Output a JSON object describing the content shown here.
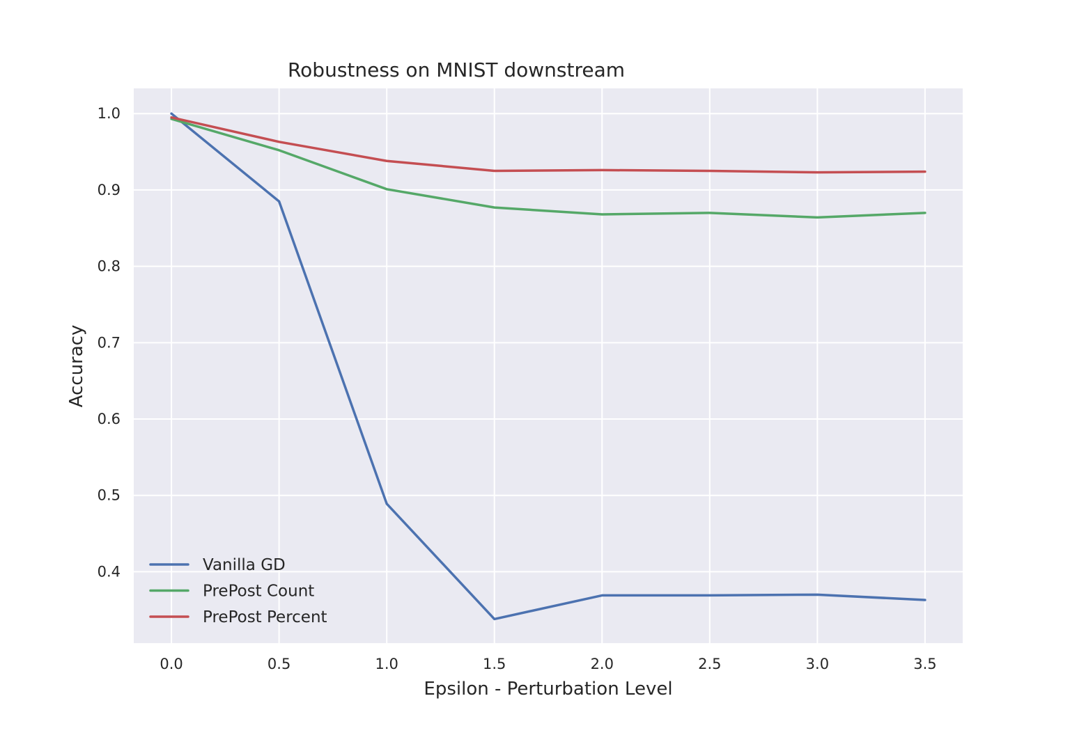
{
  "chart_data": {
    "type": "line",
    "title": "Robustness on MNIST downstream",
    "xlabel": "Epsilon - Perturbation Level",
    "ylabel": "Accuracy",
    "x": [
      0.0,
      0.5,
      1.0,
      1.5,
      2.0,
      2.5,
      3.0,
      3.5
    ],
    "x_ticks": [
      "0.0",
      "0.5",
      "1.0",
      "1.5",
      "2.0",
      "2.5",
      "3.0",
      "3.5"
    ],
    "y_ticks": [
      "0.4",
      "0.5",
      "0.6",
      "0.7",
      "0.8",
      "0.9",
      "1.0"
    ],
    "xlim": [
      -0.175,
      3.675
    ],
    "ylim": [
      0.3065,
      1.033
    ],
    "grid": true,
    "legend_position": "bottom-left",
    "series": [
      {
        "name": "Vanilla GD",
        "color": "#4c72b0",
        "values": [
          1.0,
          0.885,
          0.489,
          0.338,
          0.369,
          0.369,
          0.37,
          0.363
        ]
      },
      {
        "name": "PrePost Count",
        "color": "#55a868",
        "values": [
          0.993,
          0.952,
          0.901,
          0.877,
          0.868,
          0.87,
          0.864,
          0.87
        ]
      },
      {
        "name": "PrePost Percent",
        "color": "#c44e52",
        "values": [
          0.995,
          0.963,
          0.938,
          0.925,
          0.926,
          0.925,
          0.923,
          0.924
        ]
      }
    ]
  }
}
